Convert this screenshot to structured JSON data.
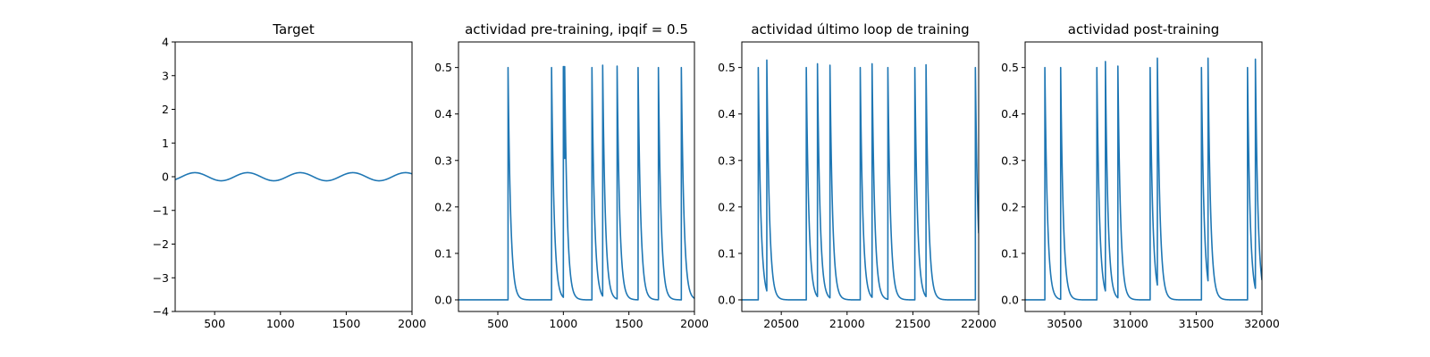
{
  "figure": {
    "line_color": "#1f77b4"
  },
  "chart_data": [
    {
      "type": "line",
      "title": "Target",
      "xlabel": "",
      "ylabel": "",
      "xlim": [
        200,
        2000
      ],
      "ylim": [
        -4,
        4
      ],
      "xticks": [
        500,
        1000,
        1500,
        2000
      ],
      "xtick_labels": [
        "500",
        "1000",
        "1500",
        "2000"
      ],
      "yticks": [
        -4,
        -3,
        -2,
        -1,
        0,
        1,
        2,
        3,
        4
      ],
      "ytick_labels": [
        "−4",
        "−3",
        "−2",
        "−1",
        "0",
        "1",
        "2",
        "3",
        "4"
      ],
      "grid": false,
      "signal": {
        "kind": "sine",
        "amplitude": 0.12,
        "period": 400,
        "peak_at": 350
      }
    },
    {
      "type": "line",
      "title": "actividad pre-training, ipqif = 0.5",
      "xlabel": "",
      "ylabel": "",
      "xlim": [
        200,
        2000
      ],
      "ylim": [
        -0.025,
        0.555
      ],
      "xticks": [
        500,
        1000,
        1500,
        2000
      ],
      "xtick_labels": [
        "500",
        "1000",
        "1500",
        "2000"
      ],
      "yticks": [
        0.0,
        0.1,
        0.2,
        0.3,
        0.4,
        0.5
      ],
      "ytick_labels": [
        "0.0",
        "0.1",
        "0.2",
        "0.3",
        "0.4",
        "0.5"
      ],
      "grid": false,
      "signal": {
        "kind": "spike_train",
        "baseline": 0.0,
        "decay": 20,
        "spikes": [
          [
            578,
            0.5
          ],
          [
            910,
            0.5
          ],
          [
            1000,
            0.502
          ],
          [
            1010,
            0.502
          ],
          [
            1218,
            0.5
          ],
          [
            1300,
            0.505
          ],
          [
            1410,
            0.503
          ],
          [
            1570,
            0.5
          ],
          [
            1725,
            0.5
          ],
          [
            1900,
            0.5
          ]
        ]
      }
    },
    {
      "type": "line",
      "title": "actividad último loop de training",
      "xlabel": "",
      "ylabel": "",
      "xlim": [
        20200,
        22000
      ],
      "ylim": [
        -0.025,
        0.555
      ],
      "xticks": [
        20500,
        21000,
        21500,
        22000
      ],
      "xtick_labels": [
        "20500",
        "21000",
        "21500",
        "22000"
      ],
      "yticks": [
        0.0,
        0.1,
        0.2,
        0.3,
        0.4,
        0.5
      ],
      "ytick_labels": [
        "0.0",
        "0.1",
        "0.2",
        "0.3",
        "0.4",
        "0.5"
      ],
      "grid": false,
      "signal": {
        "kind": "spike_train",
        "baseline": 0.0,
        "decay": 20,
        "spikes": [
          [
            20325,
            0.5
          ],
          [
            20390,
            0.516
          ],
          [
            20690,
            0.5
          ],
          [
            20775,
            0.508
          ],
          [
            20870,
            0.505
          ],
          [
            21100,
            0.5
          ],
          [
            21190,
            0.508
          ],
          [
            21310,
            0.5
          ],
          [
            21515,
            0.5
          ],
          [
            21600,
            0.506
          ],
          [
            21975,
            0.5
          ]
        ]
      }
    },
    {
      "type": "line",
      "title": "actividad post-training",
      "xlabel": "",
      "ylabel": "",
      "xlim": [
        30200,
        32000
      ],
      "ylim": [
        -0.025,
        0.555
      ],
      "xticks": [
        30500,
        31000,
        31500,
        32000
      ],
      "xtick_labels": [
        "30500",
        "31000",
        "31500",
        "32000"
      ],
      "yticks": [
        0.0,
        0.1,
        0.2,
        0.3,
        0.4,
        0.5
      ],
      "ytick_labels": [
        "0.0",
        "0.1",
        "0.2",
        "0.3",
        "0.4",
        "0.5"
      ],
      "grid": false,
      "signal": {
        "kind": "spike_train",
        "baseline": 0.0,
        "decay": 20,
        "spikes": [
          [
            30350,
            0.5
          ],
          [
            30470,
            0.5
          ],
          [
            30745,
            0.5
          ],
          [
            30810,
            0.513
          ],
          [
            30905,
            0.503
          ],
          [
            31150,
            0.5
          ],
          [
            31205,
            0.52
          ],
          [
            31540,
            0.5
          ],
          [
            31590,
            0.52
          ],
          [
            31890,
            0.5
          ],
          [
            31950,
            0.518
          ]
        ]
      }
    }
  ]
}
